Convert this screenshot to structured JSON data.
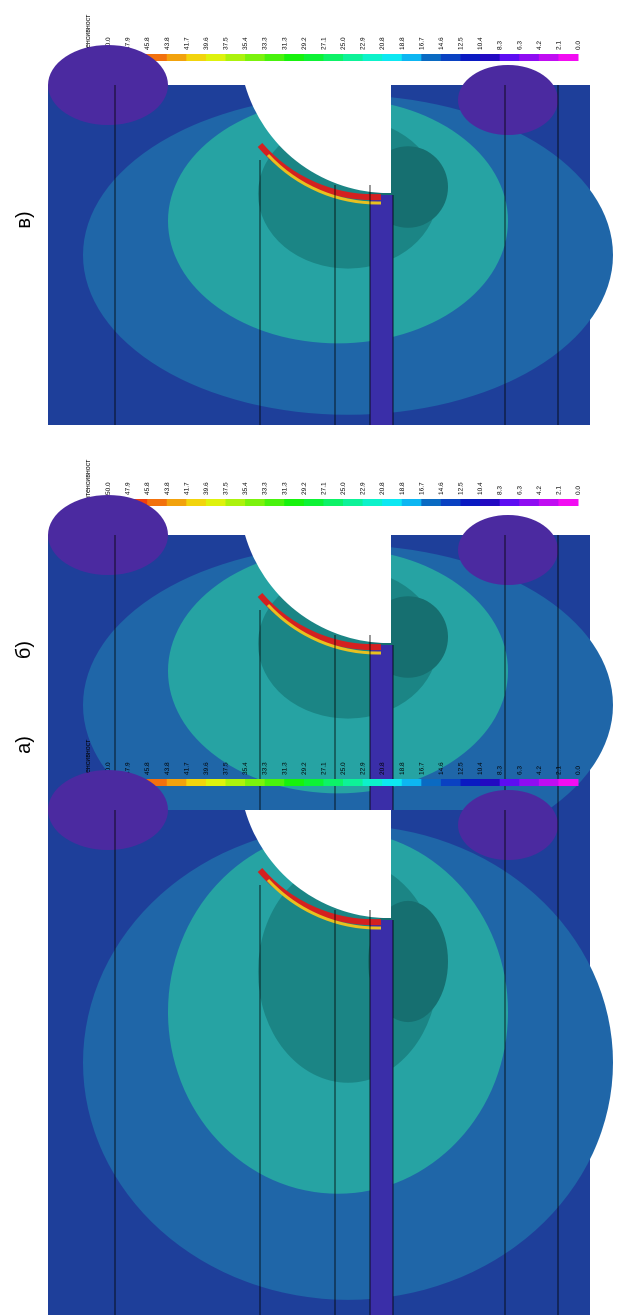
{
  "panels": [
    {
      "label": "в)",
      "legend": {
        "title": "Интенсивност",
        "values": [
          "50.0",
          "47.9",
          "45.8",
          "43.8",
          "41.7",
          "39.6",
          "37.5",
          "35.4",
          "33.3",
          "31.3",
          "29.2",
          "27.1",
          "25.0",
          "22.9",
          "20.8",
          "18.8",
          "16.7",
          "14.6",
          "12.5",
          "10.4",
          "8.3",
          "6.3",
          "4.2",
          "2.1",
          "0.0"
        ]
      }
    },
    {
      "label": "б)",
      "legend": {
        "title": "Интенсивност",
        "values": [
          "50.0",
          "47.9",
          "45.8",
          "43.8",
          "41.7",
          "39.6",
          "37.5",
          "35.4",
          "33.3",
          "31.3",
          "29.2",
          "27.1",
          "25.0",
          "22.9",
          "20.8",
          "18.8",
          "16.7",
          "14.6",
          "12.5",
          "10.4",
          "8.3",
          "6.3",
          "4.2",
          "2.1",
          "0.0"
        ]
      }
    },
    {
      "label": "а)",
      "legend": {
        "title": "Интенсивност",
        "values": [
          "50.0",
          "47.9",
          "45.8",
          "43.8",
          "41.7",
          "39.6",
          "37.5",
          "35.4",
          "33.3",
          "31.3",
          "29.2",
          "27.1",
          "25.0",
          "22.9",
          "20.8",
          "18.8",
          "16.7",
          "14.6",
          "12.5",
          "10.4",
          "8.3",
          "6.3",
          "4.2",
          "2.1",
          "0.0"
        ]
      }
    }
  ]
}
